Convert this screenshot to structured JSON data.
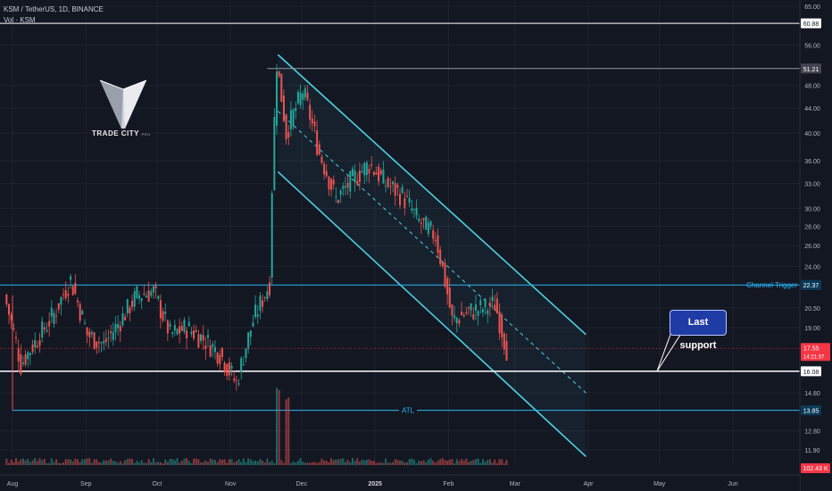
{
  "header": {
    "title": "KSM / TetherUS, 1D, BINANCE",
    "volume": "Vol · KSM"
  },
  "logo": {
    "brand": "TRADE CITY",
    "suffix": "PRO"
  },
  "callout": "Last support",
  "colors": {
    "up": "#26a69a",
    "down": "#ef5350",
    "channel": "#4dd0e1",
    "bg": "#131722",
    "grid": "#1e222d"
  },
  "chart_data": {
    "type": "candlestick",
    "symbol": "KSM / TetherUS",
    "timeframe": "1D",
    "exchange": "BINANCE",
    "log_scale": true,
    "ylim": [
      11.1,
      66
    ],
    "x_range": [
      "2024-07-29",
      "2025-06-26"
    ],
    "y_ticks": [
      "65.00",
      "56.00",
      "48.00",
      "44.00",
      "40.00",
      "36.00",
      "33.00",
      "30.00",
      "28.00",
      "26.00",
      "24.00",
      "20.50",
      "19.00",
      "14.80",
      "12.80",
      "11.90"
    ],
    "x_ticks": [
      {
        "label": "Aug",
        "date": "2024-08-01"
      },
      {
        "label": "Sep",
        "date": "2024-09-01"
      },
      {
        "label": "Oct",
        "date": "2024-10-01"
      },
      {
        "label": "Nov",
        "date": "2024-11-01"
      },
      {
        "label": "Dec",
        "date": "2024-12-01"
      },
      {
        "label": "2025",
        "date": "2025-01-01"
      },
      {
        "label": "Feb",
        "date": "2025-02-01"
      },
      {
        "label": "Mar",
        "date": "2025-03-01"
      },
      {
        "label": "Apr",
        "date": "2025-04-01"
      },
      {
        "label": "May",
        "date": "2025-05-01"
      },
      {
        "label": "Jun",
        "date": "2025-06-01"
      }
    ],
    "price_series": [
      {
        "date": "2024-07-29",
        "close": 21.5
      },
      {
        "date": "2024-08-05",
        "close": 16.5
      },
      {
        "date": "2024-08-12",
        "close": 18.2
      },
      {
        "date": "2024-08-19",
        "close": 20.0
      },
      {
        "date": "2024-08-26",
        "close": 22.8
      },
      {
        "date": "2024-09-02",
        "close": 18.5
      },
      {
        "date": "2024-09-09",
        "close": 17.8
      },
      {
        "date": "2024-09-16",
        "close": 19.5
      },
      {
        "date": "2024-09-23",
        "close": 21.5
      },
      {
        "date": "2024-09-30",
        "close": 21.8
      },
      {
        "date": "2024-10-07",
        "close": 18.5
      },
      {
        "date": "2024-10-14",
        "close": 19.0
      },
      {
        "date": "2024-10-21",
        "close": 18.2
      },
      {
        "date": "2024-10-28",
        "close": 17.2
      },
      {
        "date": "2024-11-04",
        "close": 15.3
      },
      {
        "date": "2024-11-11",
        "close": 19.5
      },
      {
        "date": "2024-11-18",
        "close": 22.5
      },
      {
        "date": "2024-11-21",
        "close": 52.0
      },
      {
        "date": "2024-11-25",
        "close": 40.0
      },
      {
        "date": "2024-12-02",
        "close": 47.0
      },
      {
        "date": "2024-12-09",
        "close": 37.0
      },
      {
        "date": "2024-12-16",
        "close": 31.0
      },
      {
        "date": "2024-12-23",
        "close": 33.5
      },
      {
        "date": "2024-12-30",
        "close": 35.5
      },
      {
        "date": "2025-01-06",
        "close": 33.0
      },
      {
        "date": "2025-01-13",
        "close": 31.5
      },
      {
        "date": "2025-01-20",
        "close": 28.5
      },
      {
        "date": "2025-01-27",
        "close": 27.0
      },
      {
        "date": "2025-02-03",
        "close": 19.5
      },
      {
        "date": "2025-02-10",
        "close": 20.2
      },
      {
        "date": "2025-02-17",
        "close": 20.5
      },
      {
        "date": "2025-02-21",
        "close": 20.8
      },
      {
        "date": "2025-02-26",
        "close": 17.55
      }
    ],
    "volume_series": [
      {
        "date": "2024-11-21",
        "volume": "high"
      },
      {
        "date": "2024-11-25",
        "volume": "high"
      }
    ],
    "horizontal_levels": [
      {
        "price": 60.88,
        "label": "60.88",
        "color": "#ffffff"
      },
      {
        "price": 51.21,
        "label": "51.21",
        "color": "#9598a1"
      },
      {
        "price": 22.37,
        "label": "22.37",
        "name": "Channel Trigger",
        "color": "#29b6f6"
      },
      {
        "price": 16.08,
        "label": "16.08",
        "color": "#ffffff"
      },
      {
        "price": 13.85,
        "label": "13.85",
        "name": "ATL",
        "color": "#29b6f6"
      }
    ],
    "current_price": {
      "price": 17.55,
      "label": "17.55",
      "countdown": "14:21:37",
      "color": "#f23645"
    },
    "volume_label": "102.43 K",
    "channel": {
      "upper": [
        [
          "2024-11-21",
          54.0
        ],
        [
          "2025-03-31",
          18.5
        ]
      ],
      "lower": [
        [
          "2024-11-21",
          34.5
        ],
        [
          "2025-03-31",
          11.6
        ]
      ],
      "mid": [
        [
          "2024-11-21",
          43.5
        ],
        [
          "2025-03-31",
          14.8
        ]
      ]
    }
  }
}
